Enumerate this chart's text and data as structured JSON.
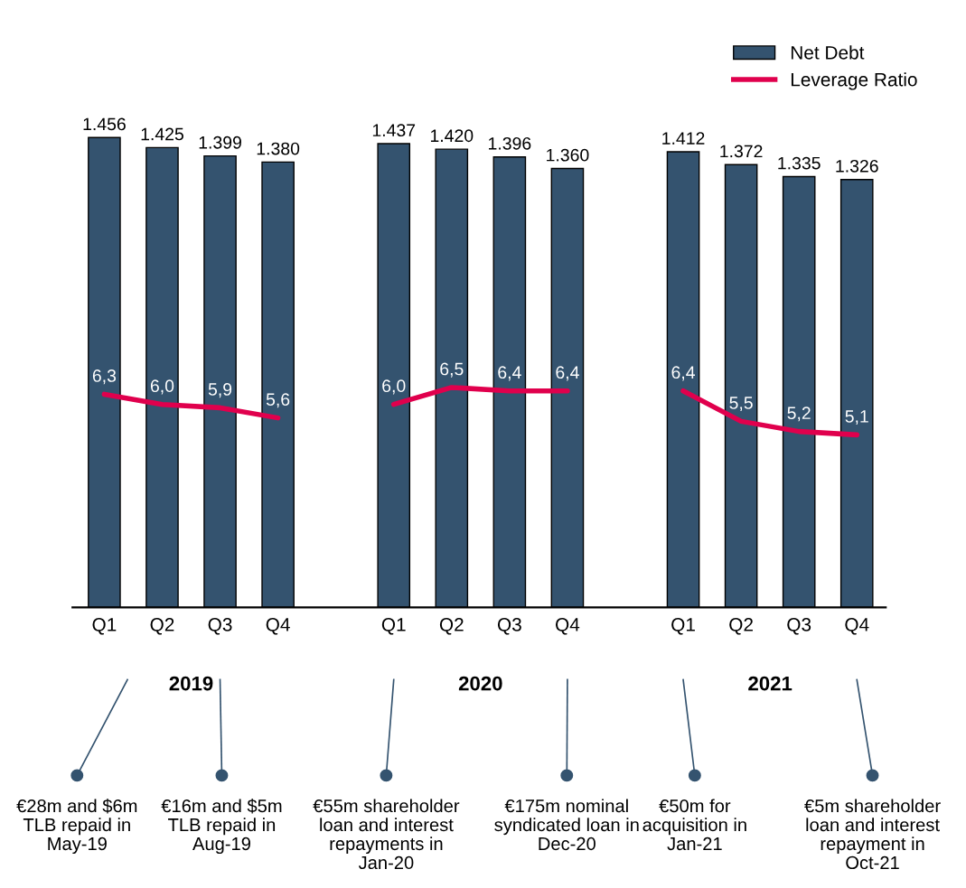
{
  "chart_data": {
    "type": "bar",
    "legend": "top right",
    "grid": false,
    "categories": [
      "Q1",
      "Q2",
      "Q3",
      "Q4",
      null,
      "Q1",
      "Q2",
      "Q3",
      "Q4",
      null,
      "Q1",
      "Q2",
      "Q3",
      "Q4"
    ],
    "series": [
      {
        "name": "Net Debt",
        "color": "#34536f",
        "values": [
          1456,
          1425,
          1399,
          1380,
          null,
          1437,
          1420,
          1396,
          1360,
          null,
          1412,
          1372,
          1335,
          1326
        ],
        "value_labels": [
          "1.456",
          "1.425",
          "1.399",
          "1.380",
          null,
          "1.437",
          "1.420",
          "1.396",
          "1.360",
          null,
          "1.412",
          "1.372",
          "1.335",
          "1.326"
        ]
      },
      {
        "name": "Leverage Ratio",
        "type": "line",
        "axis": "y2",
        "color": "#e0004d",
        "values": [
          6.3,
          6.0,
          5.9,
          5.6,
          null,
          6.0,
          6.5,
          6.4,
          6.4,
          null,
          6.4,
          5.5,
          5.2,
          5.1
        ],
        "value_labels": [
          "6,3",
          "6,0",
          "5,9",
          "5,6",
          null,
          "6,0",
          "6,5",
          "6,4",
          "6,4",
          null,
          "6,4",
          "5,5",
          "5,2",
          "5,1"
        ]
      }
    ],
    "annotations": [
      "2019",
      "2020",
      "2021",
      "€28m and $6m TLB repaid in May-19",
      "€16m and $5m TLB repaid in Aug-19",
      "€55m shareholder loan and interest repayments in Jan-20",
      "€175m nominal syndicated loan in Dec-20",
      "€50m for acquisition in Jan-21",
      "€5m shareholder loan and interest repayment in Oct-21"
    ]
  }
}
